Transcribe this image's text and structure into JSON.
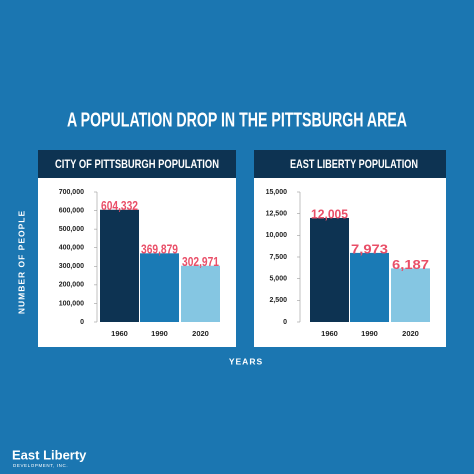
{
  "title": "A POPULATION DROP IN THE PITTSBURGH AREA",
  "ylabel": "NUMBER OF PEOPLE",
  "xlabel": "YEARS",
  "logo_name": "East Liberty",
  "logo_sub": "DEVELOPMENT, INC.",
  "chart_data": [
    {
      "type": "bar",
      "title": "CITY OF PITTSBURGH POPULATION",
      "categories": [
        "1960",
        "1990",
        "2020"
      ],
      "values": [
        604332,
        369879,
        302971
      ],
      "value_labels": [
        "604,332",
        "369,879",
        "302,971"
      ],
      "colors": [
        "#0d3352",
        "#1a7ab5",
        "#85c6e2"
      ],
      "ylim": [
        0,
        700000
      ],
      "yticks": [
        0,
        {
          "value": 100000,
          "label": "100,000"
        },
        {
          "value": 200000,
          "label": "200,000"
        },
        {
          "value": 300000,
          "label": "300,000"
        },
        {
          "value": 400000,
          "label": "400,000"
        },
        {
          "value": 500000,
          "label": "500,000"
        },
        {
          "value": 600000,
          "label": "600,000"
        },
        {
          "value": 700000,
          "label": "700,000"
        }
      ]
    },
    {
      "type": "bar",
      "title": "EAST LIBERTY POPULATION",
      "categories": [
        "1960",
        "1990",
        "2020"
      ],
      "values": [
        12005,
        7973,
        6187
      ],
      "value_labels": [
        "12,005",
        "7,973",
        "6,187"
      ],
      "colors": [
        "#0d3352",
        "#1a7ab5",
        "#85c6e2"
      ],
      "ylim": [
        0,
        15000
      ],
      "yticks": [
        0,
        {
          "value": 2500,
          "label": "2,500"
        },
        {
          "value": 5000,
          "label": "5,000"
        },
        {
          "value": 7500,
          "label": "7,500"
        },
        {
          "value": 10000,
          "label": "10,000"
        },
        {
          "value": 12500,
          "label": "12,500"
        },
        {
          "value": 15000,
          "label": "15,000"
        }
      ]
    }
  ]
}
